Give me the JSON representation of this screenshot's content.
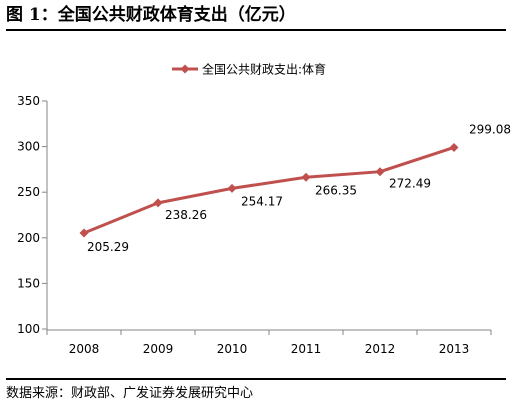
{
  "figure": {
    "title": "图 1：全国公共财政体育支出（亿元）",
    "source": "数据来源：财政部、广发证券发展研究中心"
  },
  "chart_data": {
    "type": "line",
    "categories": [
      "2008",
      "2009",
      "2010",
      "2011",
      "2012",
      "2013"
    ],
    "series": [
      {
        "name": "全国公共财政支出:体育",
        "values": [
          205.29,
          238.26,
          254.17,
          266.35,
          272.49,
          299.08
        ]
      }
    ],
    "data_labels": [
      "205.29",
      "238.26",
      "254.17",
      "266.35",
      "272.49",
      "299.08"
    ],
    "ylim": [
      100,
      350
    ],
    "yticks": [
      100,
      150,
      200,
      250,
      300,
      350
    ],
    "grid": false,
    "legend": "top-center",
    "colors": {
      "series": "#c0504d",
      "axis": "#868686"
    }
  }
}
